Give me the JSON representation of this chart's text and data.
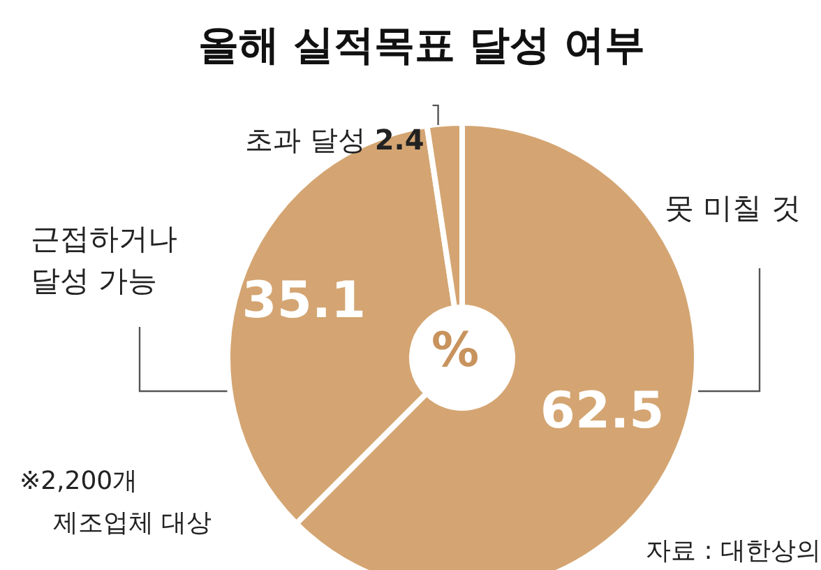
{
  "chart_data": {
    "type": "donut",
    "title": "올해 실적목표 달성 여부",
    "categories": [
      "못 미칠 것",
      "근접하거나\n달성 가능",
      "초과 달성"
    ],
    "values": [
      62.5,
      35.1,
      2.4
    ],
    "colors": [
      "#d4a572",
      "#d4a572",
      "#d4a572"
    ],
    "data_labels": true,
    "legend": false,
    "annotations": [
      "%",
      "※2,200개\n제조업체 대상",
      "자료 : 대한상의"
    ]
  }
}
